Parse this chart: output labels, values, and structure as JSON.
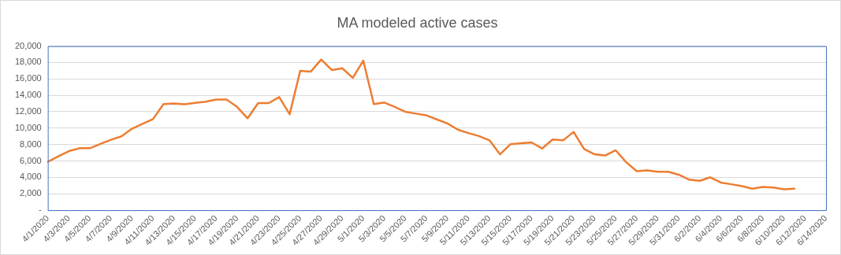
{
  "chart_data": {
    "type": "line",
    "title": "MA modeled active cases",
    "categories": [
      "4/1/2020",
      null,
      "4/3/2020",
      null,
      "4/5/2020",
      null,
      "4/7/2020",
      null,
      "4/9/2020",
      null,
      "4/11/2020",
      null,
      "4/13/2020",
      null,
      "4/15/2020",
      null,
      "4/17/2020",
      null,
      "4/19/2020",
      null,
      "4/21/2020",
      null,
      "4/23/2020",
      null,
      "4/25/2020",
      null,
      "4/27/2020",
      null,
      "4/29/2020",
      null,
      "5/1/2020",
      null,
      "5/3/2020",
      null,
      "5/5/2020",
      null,
      "5/7/2020",
      null,
      "5/9/2020",
      null,
      "5/11/2020",
      null,
      "5/13/2020",
      null,
      "5/15/2020",
      null,
      "5/17/2020",
      null,
      "5/19/2020",
      null,
      "5/21/2020",
      null,
      "5/23/2020",
      null,
      "5/25/2020",
      null,
      "5/27/2020",
      null,
      "5/29/2020",
      null,
      "5/31/2020",
      null,
      "6/2/2020",
      null,
      "6/4/2020",
      null,
      "6/6/2020",
      null,
      "6/8/2020",
      null,
      "6/10/2020",
      null,
      "6/12/2020",
      null,
      "6/14/2020"
    ],
    "series": [
      {
        "color": "#ed7d31",
        "values": [
          5900,
          6560,
          7200,
          7550,
          7550,
          8080,
          8580,
          9000,
          9930,
          10530,
          11100,
          12940,
          13010,
          12900,
          13080,
          13230,
          13480,
          13480,
          12590,
          11200,
          13050,
          13050,
          13790,
          11700,
          16990,
          16880,
          18370,
          17090,
          17300,
          16130,
          18230,
          12940,
          13120,
          12590,
          11990,
          11770,
          11560,
          11060,
          10570,
          9820,
          9400,
          9040,
          8510,
          6810,
          8050,
          8160,
          8260,
          7520,
          8620,
          8510,
          9540,
          7450,
          6810,
          6670,
          7300,
          5850,
          4750,
          4860,
          4680,
          4680,
          4330,
          3720,
          3580,
          4010,
          3370,
          3160,
          2940,
          2620,
          2840,
          2770,
          2550,
          2620,
          null,
          null,
          null
        ]
      }
    ],
    "ylim": [
      0,
      20000
    ],
    "yticks": [
      {
        "value": 0,
        "label": "-"
      },
      {
        "value": 2000,
        "label": "2,000"
      },
      {
        "value": 4000,
        "label": "4,000"
      },
      {
        "value": 6000,
        "label": "6,000"
      },
      {
        "value": 8000,
        "label": "8,000"
      },
      {
        "value": 10000,
        "label": "10,000"
      },
      {
        "value": 12000,
        "label": "12,000"
      },
      {
        "value": 14000,
        "label": "14,000"
      },
      {
        "value": 16000,
        "label": "16,000"
      },
      {
        "value": 18000,
        "label": "18,000"
      },
      {
        "value": 20000,
        "label": "20,000"
      }
    ],
    "grid": "y",
    "legend": false,
    "marker": "none",
    "line_style": "solid"
  }
}
